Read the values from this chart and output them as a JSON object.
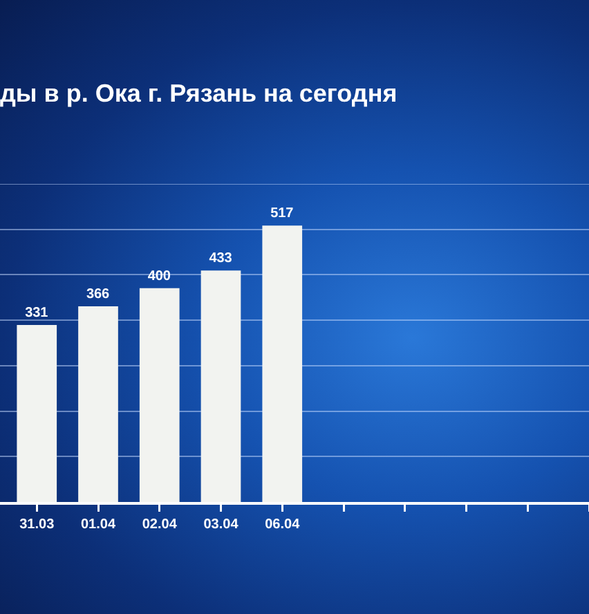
{
  "chart_data": {
    "type": "bar",
    "title": "ды в р. Ока г. Рязань на сегодня",
    "categories": [
      "31.03",
      "01.04",
      "02.04",
      "03.04",
      "06.04",
      null,
      null,
      null,
      null,
      null
    ],
    "values": [
      331,
      366,
      400,
      433,
      517,
      null,
      null,
      null,
      null,
      null
    ],
    "color": "#f2f3f0",
    "data_labels": true,
    "ylim": [
      0,
      595
    ],
    "yticks": [
      {
        "value": 0,
        "label": null
      },
      {
        "value": 85,
        "label": null
      },
      {
        "value": 170,
        "label": null
      },
      {
        "value": 255,
        "label": null
      },
      {
        "value": 340,
        "label": null
      },
      {
        "value": 425,
        "label": null
      },
      {
        "value": 510,
        "label": null
      },
      {
        "value": 595,
        "label": null
      }
    ],
    "grid": "y",
    "tick_labels": "x"
  }
}
